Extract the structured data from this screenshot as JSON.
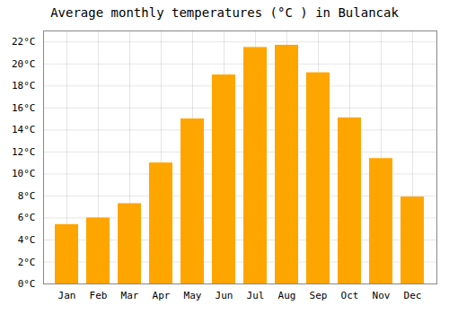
{
  "chart_data": {
    "type": "bar",
    "title": "Average monthly temperatures (°C ) in Bulancak",
    "categories": [
      "Jan",
      "Feb",
      "Mar",
      "Apr",
      "May",
      "Jun",
      "Jul",
      "Aug",
      "Sep",
      "Oct",
      "Nov",
      "Dec"
    ],
    "values": [
      5.4,
      6.0,
      7.3,
      11.0,
      15.0,
      19.0,
      21.5,
      21.7,
      19.2,
      15.1,
      11.4,
      7.9
    ],
    "color": "#FFA500",
    "ylim": [
      0,
      23
    ],
    "yticks": [
      {
        "value": 0,
        "label": "0°C"
      },
      {
        "value": 2,
        "label": "2°C"
      },
      {
        "value": 4,
        "label": "4°C"
      },
      {
        "value": 6,
        "label": "6°C"
      },
      {
        "value": 8,
        "label": "8°C"
      },
      {
        "value": 10,
        "label": "10°C"
      },
      {
        "value": 12,
        "label": "12°C"
      },
      {
        "value": 14,
        "label": "14°C"
      },
      {
        "value": 16,
        "label": "16°C"
      },
      {
        "value": 18,
        "label": "18°C"
      },
      {
        "value": 20,
        "label": "20°C"
      },
      {
        "value": 22,
        "label": "22°C"
      }
    ],
    "grid": true
  }
}
